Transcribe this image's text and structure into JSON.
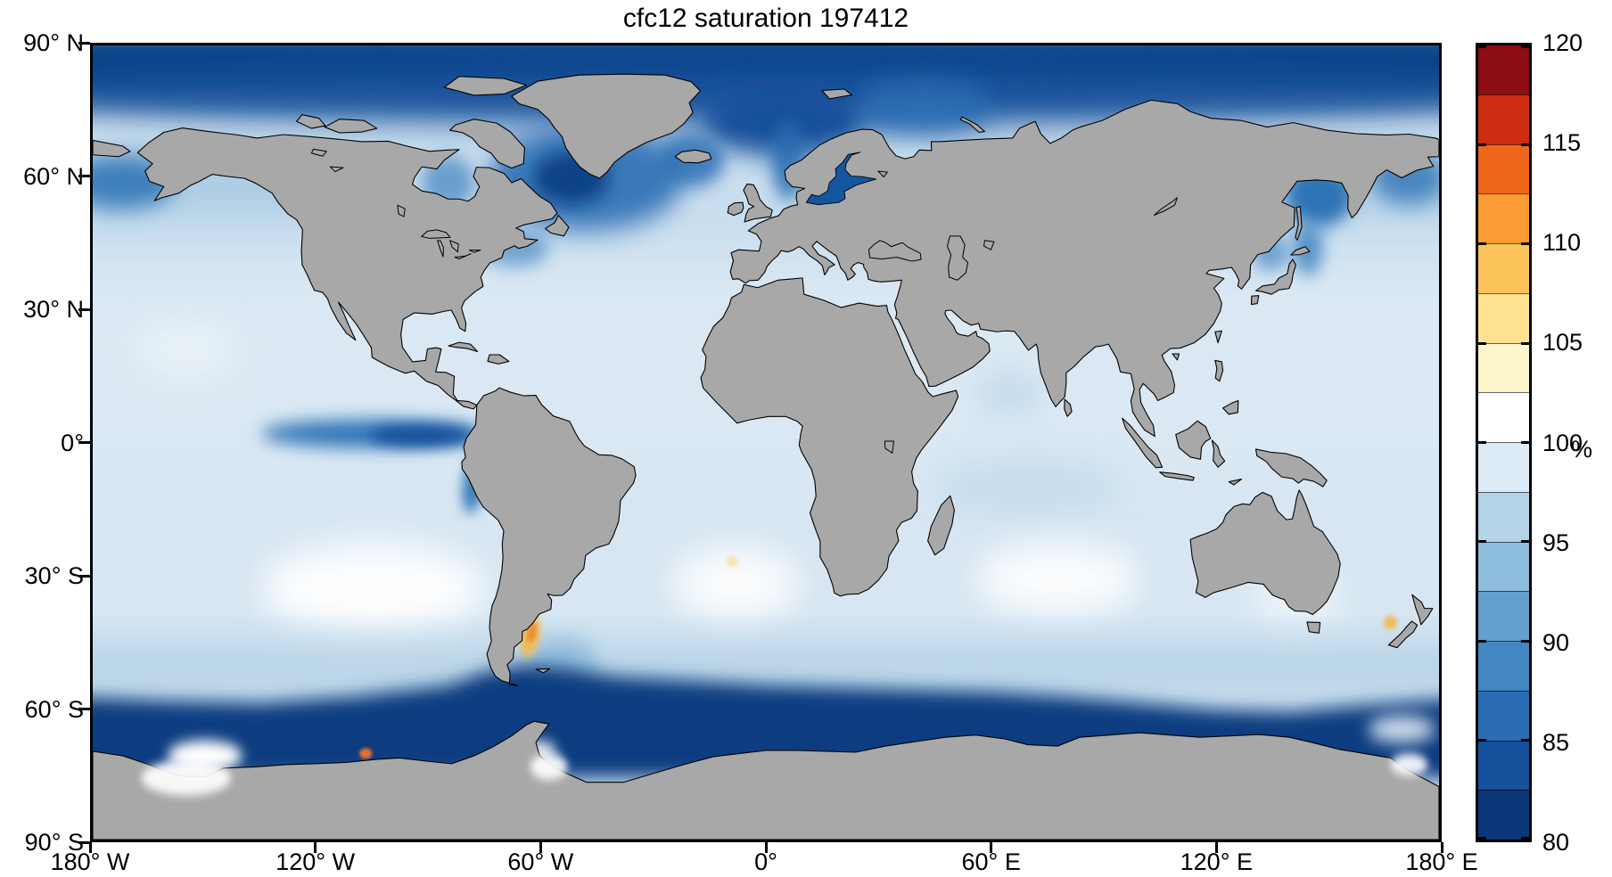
{
  "chart": {
    "title": "cfc12 saturation 197412",
    "x_axis": {
      "ticks": [
        "180° W",
        "120° W",
        "60° W",
        "0°",
        "60° E",
        "120° E",
        "180° E"
      ]
    },
    "y_axis": {
      "ticks": [
        "90° N",
        "60° N",
        "30° N",
        "0°",
        "30° S",
        "60° S",
        "90° S"
      ]
    },
    "colorbar": {
      "unit_label": "%",
      "min": 80,
      "max": 120,
      "tick_labels_top_to_bottom": [
        "120",
        "115",
        "110",
        "105",
        "100",
        "95",
        "90",
        "85",
        "80"
      ],
      "segment_colors_bottom_to_top": [
        "#0a3878",
        "#14509b",
        "#2a6db4",
        "#4286c2",
        "#64a0cf",
        "#8ebcdd",
        "#b4d3e9",
        "#dcebf5",
        "#ffffff",
        "#fdf5cb",
        "#fee291",
        "#fdc45c",
        "#fb9b34",
        "#f0661c",
        "#cc2d10",
        "#8c0d12"
      ]
    },
    "land_color": "#a8a8a8",
    "ocean_base_color": "#d7e6f2"
  },
  "chart_data": {
    "type": "heatmap",
    "title": "cfc12 saturation 197412",
    "variable": "cfc12 saturation",
    "time": "197412",
    "units": "%",
    "projection": "equirectangular",
    "lon_range": [
      -180,
      180
    ],
    "lat_range": [
      -90,
      90
    ],
    "x_tick_labels": [
      "180° W",
      "120° W",
      "60° W",
      "0°",
      "60° E",
      "120° E",
      "180° E"
    ],
    "y_tick_labels": [
      "90° N",
      "60° N",
      "30° N",
      "0°",
      "30° S",
      "60° S",
      "90° S"
    ],
    "colorbar": {
      "min": 80,
      "max": 120,
      "ticks": [
        80,
        85,
        90,
        95,
        100,
        105,
        110,
        115,
        120
      ],
      "n_segments": 16,
      "label": "%"
    },
    "land_mask_color": "#a8a8a8",
    "regions": [
      {
        "region": "Arctic Ocean",
        "lon": [
          -180,
          180
        ],
        "lat": [
          72,
          90
        ],
        "approx_saturation_pct": 80
      },
      {
        "region": "Nordic and Barents Seas",
        "lon": [
          -15,
          60
        ],
        "lat": [
          64,
          80
        ],
        "approx_saturation_pct": 84
      },
      {
        "region": "Subpolar North Atlantic / Labrador Sea",
        "lon": [
          -65,
          -15
        ],
        "lat": [
          50,
          66
        ],
        "approx_saturation_pct": 85
      },
      {
        "region": "Baltic Sea",
        "lon": [
          10,
          30
        ],
        "lat": [
          54,
          66
        ],
        "approx_saturation_pct": 84
      },
      {
        "region": "Hudson Bay",
        "lon": [
          -95,
          -77
        ],
        "lat": [
          55,
          64
        ],
        "approx_saturation_pct": 90
      },
      {
        "region": "Bering Sea",
        "lon": [
          -180,
          -160
        ],
        "lat": [
          52,
          66
        ],
        "approx_saturation_pct": 87
      },
      {
        "region": "Sea of Okhotsk",
        "lon": [
          140,
          157
        ],
        "lat": [
          45,
          60
        ],
        "approx_saturation_pct": 87
      },
      {
        "region": "North Pacific subtropical gyre",
        "lon": [
          -180,
          -120
        ],
        "lat": [
          10,
          35
        ],
        "approx_saturation_pct": 96
      },
      {
        "region": "North Atlantic subtropics",
        "lon": [
          -75,
          -15
        ],
        "lat": [
          10,
          40
        ],
        "approx_saturation_pct": 96
      },
      {
        "region": "Equatorial Pacific upwelling tongue",
        "lon": [
          -140,
          -80
        ],
        "lat": [
          -5,
          5
        ],
        "approx_saturation_pct": 85
      },
      {
        "region": "Peru coastal upwelling",
        "lon": [
          -82,
          -72
        ],
        "lat": [
          -18,
          -4
        ],
        "approx_saturation_pct": 88
      },
      {
        "region": "Tropical Indian Ocean",
        "lon": [
          45,
          100
        ],
        "lat": [
          -15,
          15
        ],
        "approx_saturation_pct": 95
      },
      {
        "region": "Southern subtropical gyres (about 25-45 S)",
        "lon": [
          -180,
          180
        ],
        "lat": [
          -45,
          -25
        ],
        "approx_saturation_pct": 100
      },
      {
        "region": "Patagonian shelf spot",
        "lon": [
          -66,
          -60
        ],
        "lat": [
          -48,
          -39
        ],
        "approx_saturation_pct": 105
      },
      {
        "region": "Brazil-Malvinas confluence",
        "lon": [
          -60,
          -48
        ],
        "lat": [
          -55,
          -44
        ],
        "approx_saturation_pct": 92
      },
      {
        "region": "Antarctic Circumpolar band (about 55-70 S)",
        "lon": [
          -180,
          180
        ],
        "lat": [
          -70,
          -55
        ],
        "approx_saturation_pct": 80
      },
      {
        "region": "Ross Sea coastal area",
        "lon": [
          -165,
          -140
        ],
        "lat": [
          -76,
          -70
        ],
        "approx_saturation_pct": 100
      },
      {
        "region": "Amundsen Sea coastal spot",
        "lon": [
          -110,
          -104
        ],
        "lat": [
          -72,
          -69
        ],
        "approx_saturation_pct": 110
      },
      {
        "region": "Tasman Sea spot near New Zealand",
        "lon": [
          164,
          170
        ],
        "lat": [
          -43,
          -39
        ],
        "approx_saturation_pct": 104
      }
    ]
  }
}
